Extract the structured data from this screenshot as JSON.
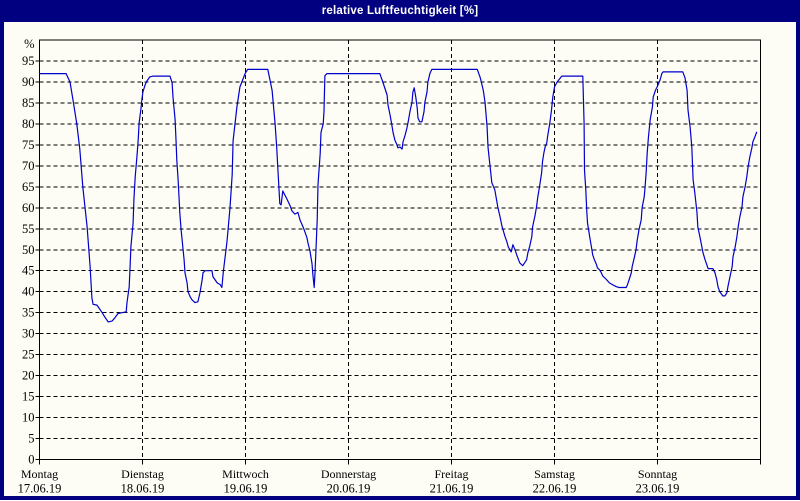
{
  "window": {
    "title": "relative Luftfeuchtigkeit [%]",
    "title_bar_color": "#000080",
    "title_text_color": "#ffffff",
    "border_color": "#000080"
  },
  "chart_data": {
    "type": "line",
    "title": "relative Luftfeuchtigkeit [%]",
    "ylabel": "%",
    "xlabel": "",
    "ylim": [
      0,
      100
    ],
    "y_ticks": [
      0,
      5,
      10,
      15,
      20,
      25,
      30,
      35,
      40,
      45,
      50,
      55,
      60,
      65,
      70,
      75,
      80,
      85,
      90,
      95
    ],
    "grid": "dashed black horizontal every 5 units and vertical at day boundaries",
    "legend_position": "none",
    "line_color": "#0000cc",
    "grid_color": "#000000",
    "plot_bg": "#fdfdf5",
    "x_unit": "hours since Montag 00:00, 24 h per day, 7 days total",
    "x_total_hours": 168,
    "x_days": [
      {
        "name": "Montag",
        "date": "17.06.19"
      },
      {
        "name": "Dienstag",
        "date": "18.06.19"
      },
      {
        "name": "Mittwoch",
        "date": "19.06.19"
      },
      {
        "name": "Donnerstag",
        "date": "20.06.19"
      },
      {
        "name": "Freitag",
        "date": "21.06.19"
      },
      {
        "name": "Samstag",
        "date": "22.06.19"
      },
      {
        "name": "Sonntag",
        "date": "23.06.19"
      }
    ],
    "series": [
      {
        "name": "relative Luftfeuchtigkeit",
        "points": [
          [
            0.1,
            92
          ],
          [
            6.2,
            92
          ],
          [
            7.1,
            90
          ],
          [
            7.8,
            85.7
          ],
          [
            8.7,
            80
          ],
          [
            9.4,
            74
          ],
          [
            10.1,
            65
          ],
          [
            11.1,
            55.5
          ],
          [
            11.8,
            46
          ],
          [
            12.2,
            38.5
          ],
          [
            12.5,
            37
          ],
          [
            13.4,
            36.8
          ],
          [
            14.6,
            35
          ],
          [
            15.3,
            33.8
          ],
          [
            16,
            32.8
          ],
          [
            16.9,
            33
          ],
          [
            17.6,
            33.8
          ],
          [
            18.3,
            34.8
          ],
          [
            19.2,
            35
          ],
          [
            20.2,
            35.2
          ],
          [
            20.4,
            37.4
          ],
          [
            20.9,
            41.2
          ],
          [
            21.1,
            46
          ],
          [
            21.3,
            50.7
          ],
          [
            21.8,
            56.4
          ],
          [
            22,
            61.9
          ],
          [
            22.3,
            67.4
          ],
          [
            22.7,
            72.1
          ],
          [
            23,
            76.2
          ],
          [
            23.2,
            80.2
          ],
          [
            23.6,
            83.3
          ],
          [
            23.9,
            86.2
          ],
          [
            24.1,
            87.6
          ],
          [
            24.6,
            89.3
          ],
          [
            25,
            90.2
          ],
          [
            25.7,
            91.2
          ],
          [
            26.5,
            91.4
          ],
          [
            30.4,
            91.4
          ],
          [
            30.9,
            89.8
          ],
          [
            31.1,
            86.4
          ],
          [
            31.6,
            81
          ],
          [
            31.8,
            76.2
          ],
          [
            32,
            71.4
          ],
          [
            32.3,
            66.7
          ],
          [
            32.5,
            62.6
          ],
          [
            32.7,
            58.8
          ],
          [
            33,
            54.8
          ],
          [
            33.4,
            50.7
          ],
          [
            33.7,
            47.6
          ],
          [
            33.9,
            44.5
          ],
          [
            34.4,
            42.1
          ],
          [
            34.6,
            40
          ],
          [
            35.1,
            38.8
          ],
          [
            35.5,
            38.1
          ],
          [
            36.2,
            37.4
          ],
          [
            36.9,
            37.6
          ],
          [
            37.4,
            39.8
          ],
          [
            37.9,
            42.9
          ],
          [
            38.1,
            44.5
          ],
          [
            38.6,
            45
          ],
          [
            40.2,
            45
          ],
          [
            40.4,
            43.6
          ],
          [
            41.4,
            42.1
          ],
          [
            42.1,
            41.7
          ],
          [
            42.5,
            41
          ],
          [
            42.8,
            44.5
          ],
          [
            43.7,
            52
          ],
          [
            44.4,
            60
          ],
          [
            44.9,
            68
          ],
          [
            45.1,
            76
          ],
          [
            46,
            84
          ],
          [
            46.7,
            88.8
          ],
          [
            47.9,
            92
          ],
          [
            48.5,
            93
          ],
          [
            53.2,
            93
          ],
          [
            54.2,
            88
          ],
          [
            54.9,
            80
          ],
          [
            55.3,
            74
          ],
          [
            55.6,
            68.3
          ],
          [
            56,
            61
          ],
          [
            56.3,
            60.7
          ],
          [
            56.7,
            64
          ],
          [
            57.7,
            62
          ],
          [
            58.4,
            60.5
          ],
          [
            58.8,
            59.3
          ],
          [
            59.5,
            58.5
          ],
          [
            60.2,
            58.9
          ],
          [
            60.7,
            57.1
          ],
          [
            61.4,
            55.5
          ],
          [
            61.8,
            54.4
          ],
          [
            62.3,
            52.9
          ],
          [
            62.6,
            51.4
          ],
          [
            63,
            49.8
          ],
          [
            63.5,
            46.7
          ],
          [
            63.7,
            44
          ],
          [
            64,
            41
          ],
          [
            64.2,
            44.5
          ],
          [
            64.7,
            57
          ],
          [
            64.9,
            65.5
          ],
          [
            65.4,
            73
          ],
          [
            65.6,
            78
          ],
          [
            66.1,
            80
          ],
          [
            66.3,
            83
          ],
          [
            66.4,
            88
          ],
          [
            66.5,
            91.5
          ],
          [
            67,
            92
          ],
          [
            79.3,
            92
          ],
          [
            80,
            90
          ],
          [
            81,
            86.9
          ],
          [
            81.2,
            84.5
          ],
          [
            81.7,
            82.1
          ],
          [
            82.1,
            79.8
          ],
          [
            82.4,
            77.9
          ],
          [
            82.8,
            76.2
          ],
          [
            83.3,
            75
          ],
          [
            83.5,
            74.3
          ],
          [
            84,
            74.5
          ],
          [
            84.5,
            74
          ],
          [
            84.7,
            75.7
          ],
          [
            85.2,
            77.4
          ],
          [
            85.6,
            79
          ],
          [
            85.9,
            80.5
          ],
          [
            86.3,
            82.9
          ],
          [
            86.8,
            85.2
          ],
          [
            87,
            87.6
          ],
          [
            87.3,
            88.6
          ],
          [
            87.7,
            86.2
          ],
          [
            88,
            83.8
          ],
          [
            88.2,
            81.4
          ],
          [
            88.6,
            80.5
          ],
          [
            89.1,
            80.5
          ],
          [
            89.6,
            82.9
          ],
          [
            89.8,
            85.2
          ],
          [
            90.3,
            87.6
          ],
          [
            90.5,
            90
          ],
          [
            91,
            92.1
          ],
          [
            91.4,
            93
          ],
          [
            102,
            93
          ],
          [
            102.7,
            91
          ],
          [
            103.4,
            88
          ],
          [
            103.8,
            85.2
          ],
          [
            104.3,
            79.3
          ],
          [
            104.5,
            74.5
          ],
          [
            105,
            69.8
          ],
          [
            105.4,
            66
          ],
          [
            106.1,
            64.3
          ],
          [
            106.8,
            60.2
          ],
          [
            107.3,
            57.9
          ],
          [
            107.8,
            55.5
          ],
          [
            108.5,
            53.1
          ],
          [
            108.9,
            51.9
          ],
          [
            109.2,
            50.7
          ],
          [
            109.6,
            50
          ],
          [
            109.9,
            49.5
          ],
          [
            110.3,
            51.2
          ],
          [
            110.8,
            50
          ],
          [
            111.2,
            48.8
          ],
          [
            111.9,
            46.9
          ],
          [
            112.6,
            46.2
          ],
          [
            113.5,
            47.6
          ],
          [
            113.8,
            49.3
          ],
          [
            114.2,
            50.7
          ],
          [
            114.7,
            53.1
          ],
          [
            114.9,
            55.5
          ],
          [
            115.4,
            57.9
          ],
          [
            115.8,
            60.2
          ],
          [
            116.1,
            62.6
          ],
          [
            116.5,
            65
          ],
          [
            117,
            68.3
          ],
          [
            117.2,
            71
          ],
          [
            117.5,
            73
          ],
          [
            117.8,
            74.5
          ],
          [
            118.2,
            75.5
          ],
          [
            118.4,
            77
          ],
          [
            118.9,
            80.2
          ],
          [
            119.3,
            83.3
          ],
          [
            119.6,
            86.4
          ],
          [
            120,
            88.8
          ],
          [
            120.6,
            90
          ],
          [
            121.3,
            90.9
          ],
          [
            121.7,
            91.4
          ],
          [
            126.6,
            91.4
          ],
          [
            126.9,
            80
          ],
          [
            127,
            69
          ],
          [
            127.3,
            64.3
          ],
          [
            127.5,
            59.5
          ],
          [
            127.7,
            56.4
          ],
          [
            128.2,
            53.1
          ],
          [
            128.6,
            50.7
          ],
          [
            128.9,
            48.8
          ],
          [
            129.3,
            47.6
          ],
          [
            129.8,
            46.4
          ],
          [
            130,
            45.7
          ],
          [
            130.5,
            45.2
          ],
          [
            130.9,
            44.5
          ],
          [
            131.2,
            43.8
          ],
          [
            132.1,
            42.9
          ],
          [
            132.8,
            42.1
          ],
          [
            133.5,
            41.7
          ],
          [
            134.4,
            41.2
          ],
          [
            135.1,
            41
          ],
          [
            136.7,
            41
          ],
          [
            137,
            41.7
          ],
          [
            137.4,
            42.9
          ],
          [
            137.9,
            44.5
          ],
          [
            138.1,
            46
          ],
          [
            138.6,
            48.1
          ],
          [
            139,
            50
          ],
          [
            139.3,
            52.4
          ],
          [
            139.7,
            54.8
          ],
          [
            140.2,
            57.1
          ],
          [
            140.4,
            60
          ],
          [
            140.9,
            62.6
          ],
          [
            141.1,
            65
          ],
          [
            141.4,
            69
          ],
          [
            141.6,
            73.1
          ],
          [
            141.9,
            77
          ],
          [
            142.3,
            81
          ],
          [
            142.8,
            84
          ],
          [
            143,
            86.4
          ],
          [
            143.5,
            88
          ],
          [
            143.9,
            88.8
          ],
          [
            144.6,
            90.5
          ],
          [
            145,
            92
          ],
          [
            145.3,
            92.4
          ],
          [
            149.9,
            92.4
          ],
          [
            150.4,
            91
          ],
          [
            150.9,
            88
          ],
          [
            151.1,
            83.3
          ],
          [
            151.6,
            79.3
          ],
          [
            152,
            74.5
          ],
          [
            152.3,
            66.7
          ],
          [
            152.7,
            63.6
          ],
          [
            153.2,
            58.8
          ],
          [
            153.4,
            55.5
          ],
          [
            153.9,
            53
          ],
          [
            154.6,
            49.3
          ],
          [
            155.1,
            47.6
          ],
          [
            155.5,
            46.4
          ],
          [
            155.8,
            45.5
          ],
          [
            156.9,
            45.5
          ],
          [
            157.4,
            44.5
          ],
          [
            157.8,
            42.9
          ],
          [
            158.1,
            41.2
          ],
          [
            158.5,
            40
          ],
          [
            159,
            39.3
          ],
          [
            159.2,
            39
          ],
          [
            159.7,
            39
          ],
          [
            160.2,
            39.8
          ],
          [
            160.4,
            41.2
          ],
          [
            160.9,
            43.6
          ],
          [
            161.4,
            46
          ],
          [
            161.6,
            48.3
          ],
          [
            162.1,
            50.7
          ],
          [
            162.5,
            53.1
          ],
          [
            162.8,
            55.5
          ],
          [
            163.2,
            57.9
          ],
          [
            163.7,
            60.2
          ],
          [
            163.9,
            62.6
          ],
          [
            164.4,
            65
          ],
          [
            164.8,
            67.4
          ],
          [
            165.1,
            69.8
          ],
          [
            165.5,
            72.1
          ],
          [
            166,
            74.3
          ],
          [
            166.2,
            75.7
          ],
          [
            166.7,
            76.9
          ],
          [
            167.1,
            78
          ]
        ]
      }
    ]
  }
}
